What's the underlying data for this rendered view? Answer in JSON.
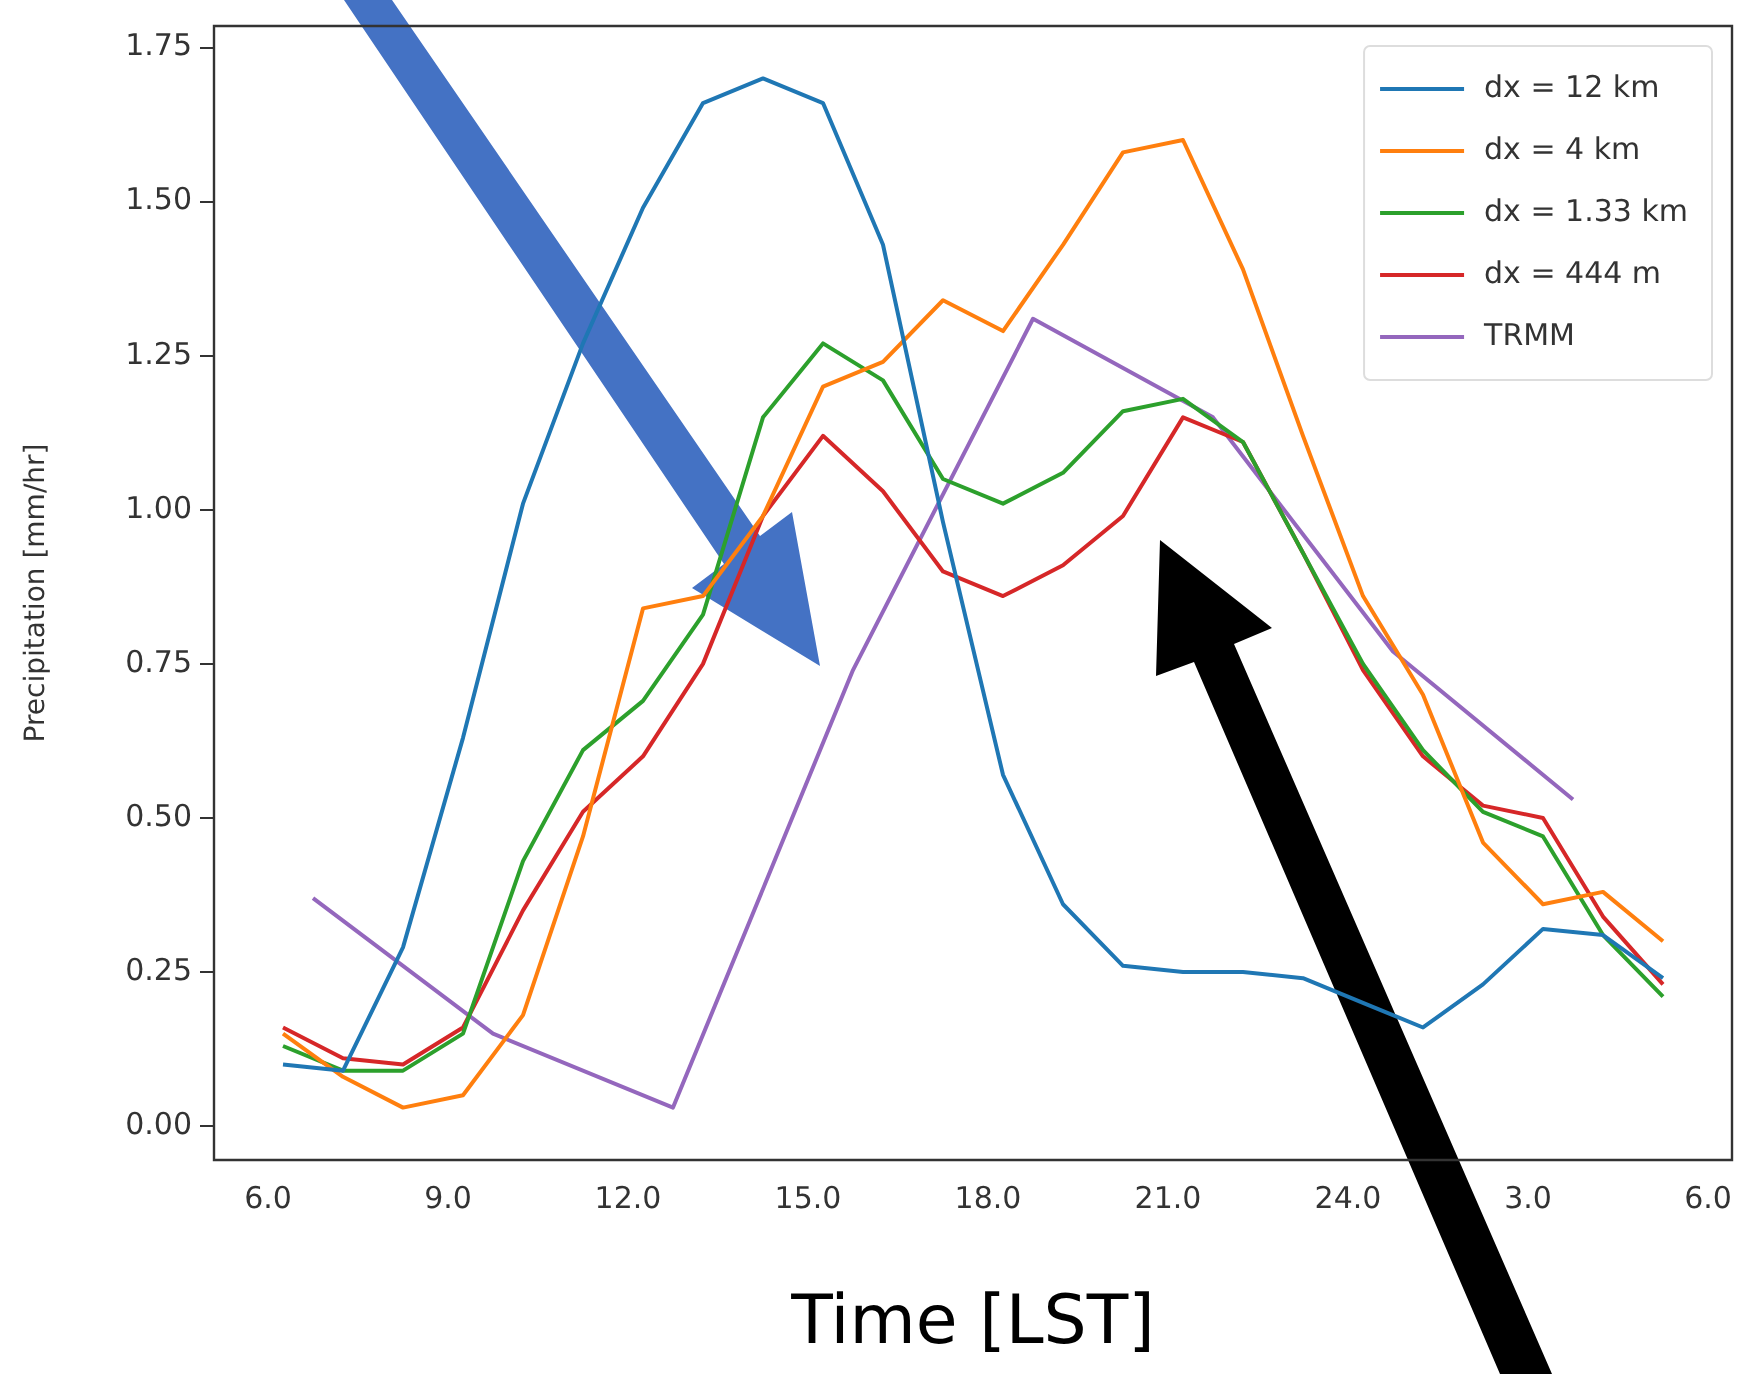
{
  "chart_data": {
    "type": "line",
    "xlabel": "Time [LST]",
    "ylabel": "Precipitation [mm/hr]",
    "xlim": [
      "--01-01T05:06",
      "--01-02T06:24"
    ],
    "ylim": [
      -0.055,
      1.785
    ],
    "xticks": [
      {
        "value": "--01-01T06:00",
        "label": "6.0"
      },
      {
        "value": "--01-01T09:00",
        "label": "9.0"
      },
      {
        "value": "--01-01T12:00",
        "label": "12.0"
      },
      {
        "value": "--01-01T15:00",
        "label": "15.0"
      },
      {
        "value": "--01-01T18:00",
        "label": "18.0"
      },
      {
        "value": "--01-01T21:00",
        "label": "21.0"
      },
      {
        "value": "--01-02T00:00",
        "label": "24.0"
      },
      {
        "value": "--01-02T03:00",
        "label": "3.0"
      },
      {
        "value": "--01-02T06:00",
        "label": "6.0"
      }
    ],
    "yticks": [
      {
        "value": 0,
        "label": "0.00"
      },
      {
        "value": 0.25,
        "label": "0.25"
      },
      {
        "value": 0.5,
        "label": "0.50"
      },
      {
        "value": 0.75,
        "label": "0.75"
      },
      {
        "value": 1,
        "label": "1.00"
      },
      {
        "value": 1.25,
        "label": "1.25"
      },
      {
        "value": 1.5,
        "label": "1.50"
      },
      {
        "value": 1.75,
        "label": "1.75"
      }
    ],
    "x": [
      "--01-01T06:15",
      "--01-01T07:15",
      "--01-01T08:15",
      "--01-01T09:15",
      "--01-01T10:15",
      "--01-01T11:15",
      "--01-01T12:15",
      "--01-01T13:15",
      "--01-01T14:15",
      "--01-01T15:15",
      "--01-01T16:15",
      "--01-01T17:15",
      "--01-01T18:15",
      "--01-01T19:15",
      "--01-01T20:15",
      "--01-01T21:15",
      "--01-01T22:15",
      "--01-01T23:15",
      "--01-02T00:15",
      "--01-02T01:15",
      "--01-02T02:15",
      "--01-02T03:15",
      "--01-02T04:15",
      "--01-02T05:15"
    ],
    "series": [
      {
        "name": "dx = 12 km",
        "color": "#1f77b4",
        "values": [
          0.1,
          0.09,
          0.29,
          0.63,
          1.01,
          1.27,
          1.49,
          1.66,
          1.7,
          1.66,
          1.43,
          0.98,
          0.57,
          0.36,
          0.26,
          0.25,
          0.25,
          0.24,
          0.2,
          0.16,
          0.23,
          0.32,
          0.31,
          0.24
        ]
      },
      {
        "name": "dx = 4 km",
        "color": "#ff7f0e",
        "values": [
          0.15,
          0.08,
          0.03,
          0.05,
          0.18,
          0.47,
          0.84,
          0.86,
          0.99,
          1.2,
          1.24,
          1.34,
          1.29,
          1.43,
          1.58,
          1.6,
          1.39,
          1.12,
          0.86,
          0.7,
          0.46,
          0.36,
          0.38,
          0.3
        ]
      },
      {
        "name": "dx = 1.33 km",
        "color": "#2ca02c",
        "values": [
          0.13,
          0.09,
          0.09,
          0.15,
          0.43,
          0.61,
          0.69,
          0.83,
          1.15,
          1.27,
          1.21,
          1.05,
          1.01,
          1.06,
          1.16,
          1.18,
          1.11,
          0.93,
          0.75,
          0.61,
          0.51,
          0.47,
          0.31,
          0.21
        ]
      },
      {
        "name": "dx = 444 m",
        "color": "#d62728",
        "values": [
          0.16,
          0.11,
          0.1,
          0.16,
          0.35,
          0.51,
          0.6,
          0.75,
          0.99,
          1.12,
          1.03,
          0.9,
          0.86,
          0.91,
          0.99,
          1.15,
          1.11,
          0.93,
          0.74,
          0.6,
          0.52,
          0.5,
          0.34,
          0.23
        ]
      },
      {
        "name": "TRMM",
        "color": "#9467bd",
        "x": [
          "--01-01T06:45",
          "--01-01T09:45",
          "--01-01T12:45",
          "--01-01T15:45",
          "--01-01T18:45",
          "--01-01T21:45",
          "--01-02T00:45",
          "--01-02T03:45"
        ],
        "values": [
          0.37,
          0.15,
          0.03,
          0.74,
          1.31,
          1.15,
          0.77,
          0.53
        ]
      }
    ],
    "legend": "top right",
    "grid": false,
    "marker": "none",
    "line_style": "solid"
  }
}
